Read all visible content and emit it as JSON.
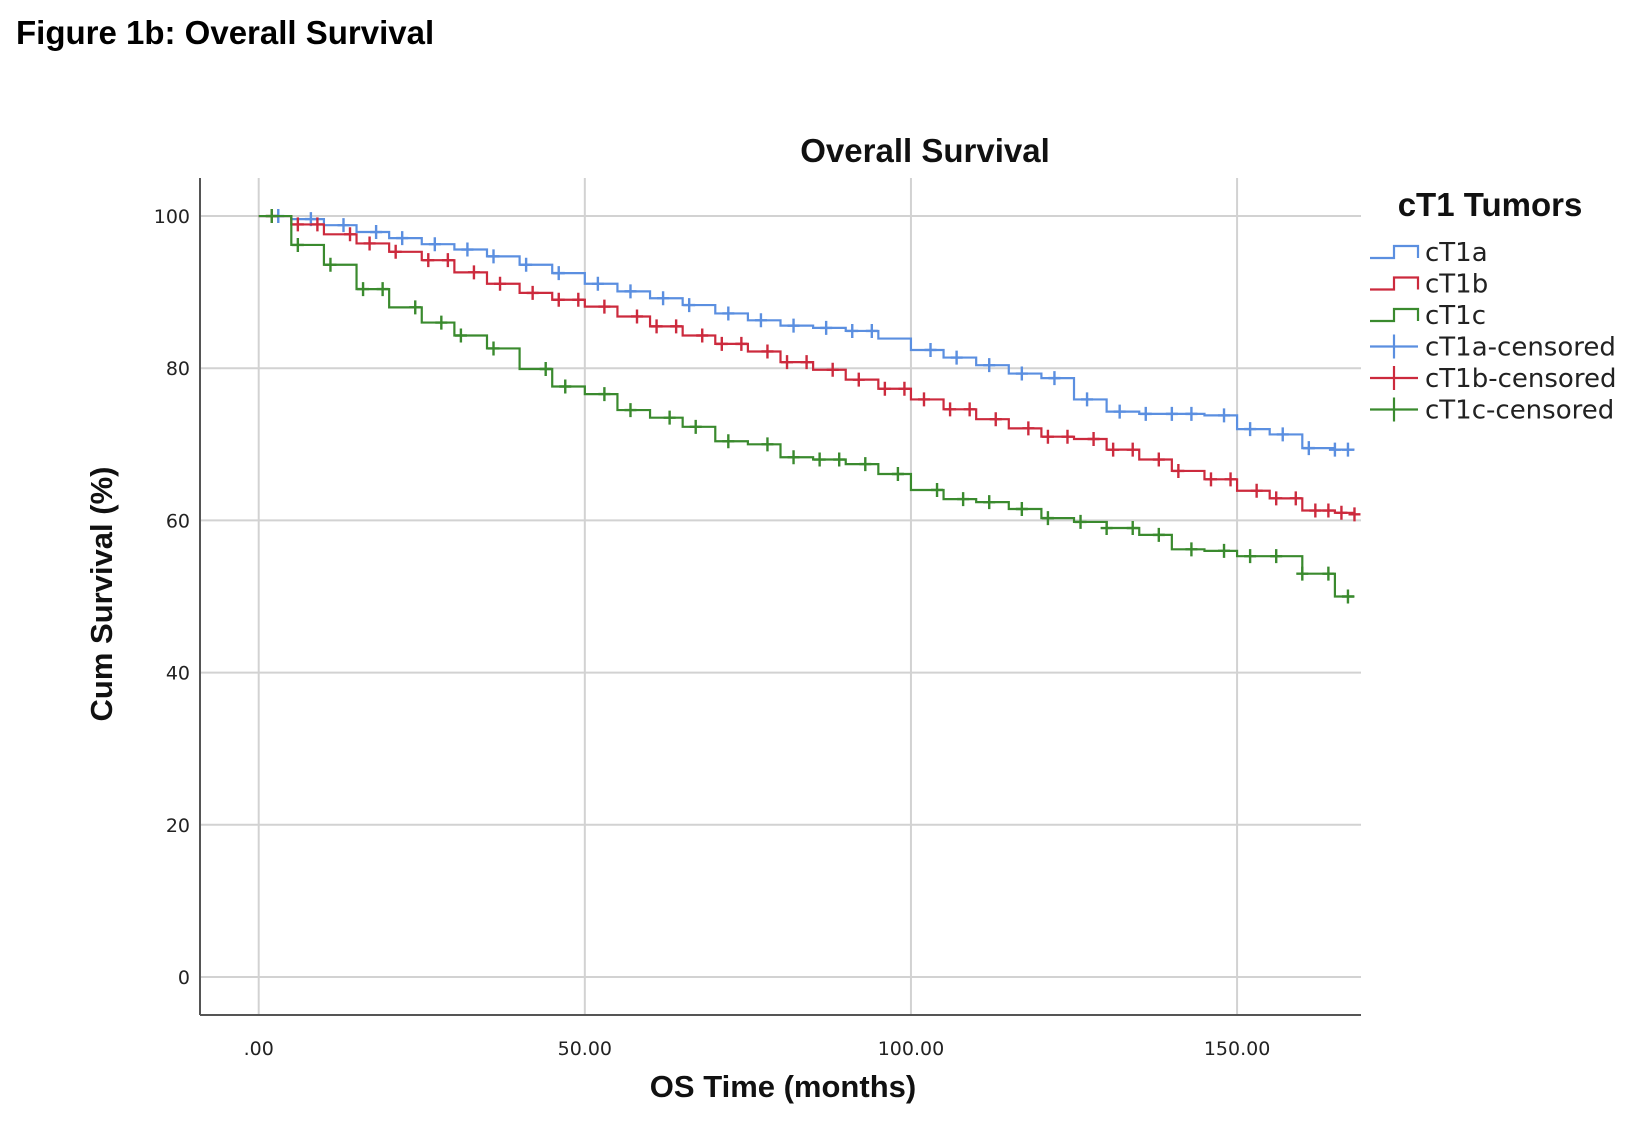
{
  "figure_caption": "Figure 1b: Overall Survival",
  "chart_data": {
    "type": "line",
    "title": "Overall Survival",
    "xlabel": "OS Time (months)",
    "ylabel": "Cum Survival (%)",
    "xlim": [
      -9,
      169
    ],
    "ylim": [
      -5,
      105
    ],
    "x_ticks": [
      0,
      50,
      100,
      150
    ],
    "x_tick_labels": [
      ".00",
      "50.00",
      "100.00",
      "150.00"
    ],
    "y_ticks": [
      0,
      20,
      40,
      60,
      80,
      100
    ],
    "y_tick_labels": [
      "0",
      "20",
      "40",
      "60",
      "80",
      "100"
    ],
    "grid": true,
    "legend": {
      "title": "cT1 Tumors",
      "placement": "right",
      "entries": [
        "cT1a",
        "cT1b",
        "cT1c",
        "cT1a-censored",
        "cT1b-censored",
        "cT1c-censored"
      ]
    },
    "series": [
      {
        "name": "cT1a",
        "color": "#5b8fe0",
        "x": [
          0,
          5,
          10,
          15,
          20,
          25,
          30,
          35,
          40,
          45,
          50,
          55,
          60,
          65,
          70,
          75,
          80,
          85,
          90,
          95,
          100,
          105,
          110,
          115,
          120,
          125,
          130,
          135,
          140,
          145,
          150,
          155,
          160,
          165,
          168
        ],
        "y": [
          100,
          99.6,
          98.8,
          97.9,
          97.1,
          96.3,
          95.6,
          94.7,
          93.6,
          92.5,
          91.1,
          90.1,
          89.2,
          88.3,
          87.2,
          86.3,
          85.6,
          85.3,
          84.9,
          83.9,
          82.4,
          81.4,
          80.4,
          79.3,
          78.7,
          75.9,
          74.3,
          74.0,
          74.0,
          73.8,
          72.0,
          71.3,
          69.5,
          69.3,
          69.3
        ],
        "censored_x": [
          3,
          8,
          13,
          18,
          22,
          27,
          32,
          36,
          41,
          46,
          52,
          57,
          62,
          66,
          72,
          77,
          82,
          87,
          91,
          94,
          103,
          107,
          112,
          117,
          122,
          127,
          132,
          136,
          140,
          143,
          148,
          152,
          157,
          161,
          165,
          167
        ]
      },
      {
        "name": "cT1b",
        "color": "#cc2a3d",
        "x": [
          0,
          5,
          10,
          15,
          20,
          25,
          30,
          35,
          40,
          45,
          50,
          55,
          60,
          65,
          70,
          75,
          80,
          85,
          90,
          95,
          100,
          105,
          110,
          115,
          120,
          125,
          130,
          135,
          140,
          145,
          150,
          155,
          160,
          165,
          168
        ],
        "y": [
          100,
          98.9,
          97.6,
          96.4,
          95.3,
          94.2,
          92.6,
          91.1,
          89.9,
          89.0,
          88.1,
          86.8,
          85.5,
          84.3,
          83.2,
          82.2,
          80.8,
          79.8,
          78.5,
          77.3,
          75.9,
          74.6,
          73.3,
          72.1,
          71.0,
          70.7,
          69.3,
          68.0,
          66.5,
          65.4,
          63.9,
          62.9,
          61.3,
          61.0,
          60.8
        ],
        "censored_x": [
          2,
          6,
          9,
          14,
          17,
          21,
          26,
          29,
          33,
          37,
          42,
          46,
          49,
          53,
          58,
          61,
          64,
          68,
          71,
          74,
          78,
          81,
          84,
          88,
          92,
          96,
          99,
          102,
          106,
          109,
          113,
          118,
          121,
          124,
          128,
          131,
          134,
          138,
          141,
          146,
          149,
          153,
          156,
          159,
          162,
          164,
          166,
          168
        ]
      },
      {
        "name": "cT1c",
        "color": "#3a8a2e",
        "x": [
          0,
          5,
          10,
          15,
          20,
          25,
          30,
          35,
          40,
          45,
          50,
          55,
          60,
          65,
          70,
          75,
          80,
          85,
          90,
          95,
          100,
          105,
          110,
          115,
          120,
          125,
          130,
          135,
          140,
          145,
          150,
          155,
          160,
          165,
          168
        ],
        "y": [
          100,
          96.2,
          93.6,
          90.4,
          88.0,
          86.0,
          84.3,
          82.6,
          79.9,
          77.6,
          76.6,
          74.5,
          73.5,
          72.3,
          70.4,
          70.0,
          68.3,
          68.0,
          67.4,
          66.1,
          64.0,
          62.8,
          62.4,
          61.5,
          60.3,
          59.8,
          59.0,
          58.1,
          56.2,
          56.0,
          55.3,
          55.3,
          53.0,
          50.0,
          50.0
        ],
        "censored_x": [
          2,
          6,
          11,
          16,
          19,
          24,
          28,
          31,
          36,
          44,
          47,
          53,
          57,
          63,
          67,
          72,
          78,
          82,
          86,
          89,
          93,
          98,
          104,
          108,
          112,
          117,
          121,
          126,
          130,
          134,
          138,
          143,
          148,
          152,
          156,
          160,
          164,
          167
        ]
      }
    ]
  }
}
